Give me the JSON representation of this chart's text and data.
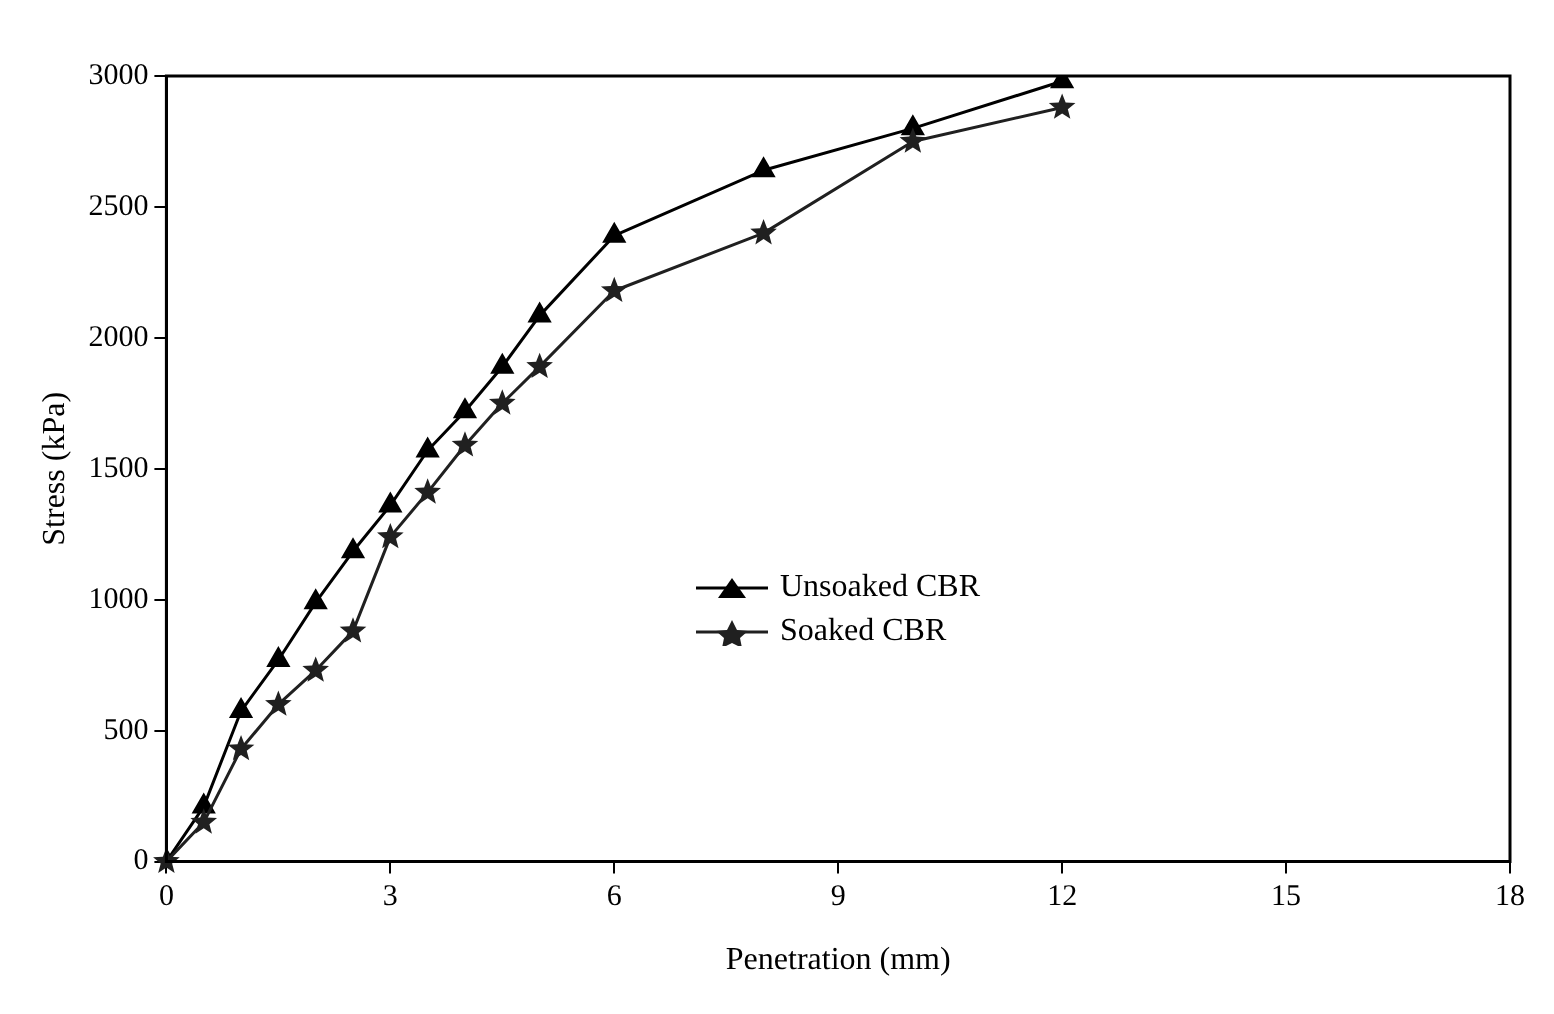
{
  "chart_data": {
    "type": "line",
    "xlabel": "Penetration (mm)",
    "ylabel": "Stress (kPa)",
    "x": [
      0,
      0.5,
      1,
      1.5,
      2,
      2.5,
      3,
      3.5,
      4,
      4.5,
      5,
      6,
      8,
      10,
      12
    ],
    "series": [
      {
        "name": "Unsoaked CBR",
        "color": "#000000",
        "marker": "triangle",
        "values": [
          0,
          210,
          575,
          770,
          990,
          1185,
          1360,
          1570,
          1720,
          1890,
          2085,
          2390,
          2640,
          2800,
          2980
        ]
      },
      {
        "name": "Soaked CBR",
        "color": "#202020",
        "marker": "star",
        "values": [
          0,
          150,
          430,
          600,
          730,
          880,
          1240,
          1410,
          1590,
          1750,
          1890,
          2180,
          2400,
          2750,
          2880
        ]
      }
    ],
    "xlim": [
      0,
      18
    ],
    "xticks": [
      0,
      3,
      6,
      9,
      12,
      15,
      18
    ],
    "ylim": [
      0,
      3000
    ],
    "yticks": [
      0,
      500,
      1000,
      1500,
      2000,
      2500,
      3000
    ],
    "grid": false,
    "legend": "center",
    "line_style": "solid"
  }
}
